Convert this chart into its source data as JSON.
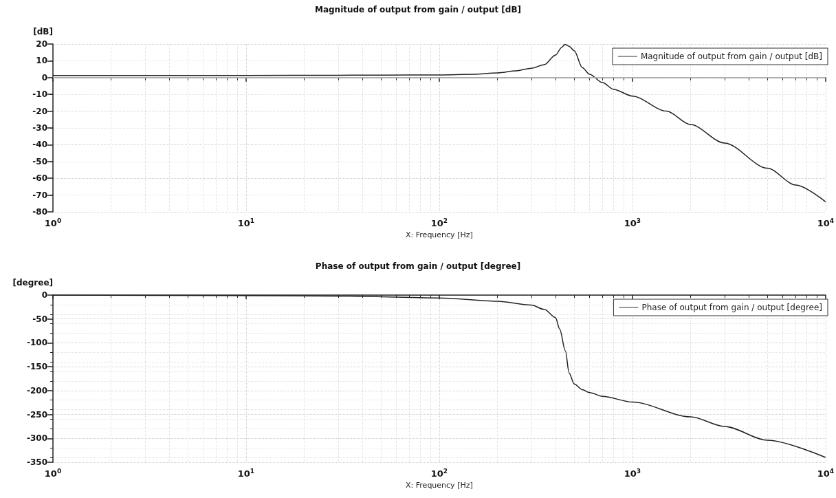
{
  "chart_data": [
    {
      "type": "line",
      "title": "Magnitude of output from gain / output [dB]",
      "xlabel": "X: Frequency [Hz]",
      "ylabel": "[dB]",
      "log": "x",
      "grid": true,
      "legend": "top right",
      "marker": "none",
      "line_style": "solid",
      "xlim": [
        1,
        10000
      ],
      "xticks": [
        {
          "value": 1,
          "label": "10$^{0}$"
        },
        {
          "value": 10,
          "label": "10$^{1}$"
        },
        {
          "value": 100,
          "label": "10$^{2}$"
        },
        {
          "value": 1000,
          "label": "10$^{3}$"
        },
        {
          "value": 10000,
          "label": "10$^{4}$"
        }
      ],
      "ylim": [
        -80,
        20
      ],
      "yticks": [
        -80,
        -70,
        -60,
        -50,
        -40,
        -30,
        -20,
        -10,
        0,
        10,
        20
      ],
      "ref_lines": [
        {
          "axis": "y",
          "value": 0,
          "color": "#cccccc"
        }
      ],
      "series": [
        {
          "name": "Magnitude of output from gain / output [dB]",
          "color": "#222222",
          "x": [
            1,
            10,
            30,
            50,
            100,
            150,
            200,
            250,
            300,
            350,
            400,
            430,
            447,
            470,
            500,
            550,
            600,
            700,
            800,
            1000,
            1500,
            2000,
            3000,
            5000,
            7000,
            10000
          ],
          "values": [
            1.3,
            1.3,
            1.4,
            1.5,
            1.6,
            2,
            2.8,
            4,
            5.6,
            7.7,
            13.4,
            18,
            19.8,
            18.7,
            16,
            6,
            2,
            -3,
            -7,
            -11,
            -20,
            -28,
            -39,
            -54,
            -64,
            -74
          ]
        }
      ]
    },
    {
      "type": "line",
      "title": "Phase of output from gain / output [degree]",
      "xlabel": "X: Frequency [Hz]",
      "ylabel": "[degree]",
      "log": "x",
      "grid": true,
      "legend": "top right",
      "marker": "none",
      "line_style": "solid",
      "xlim": [
        1,
        10000
      ],
      "xticks": [
        {
          "value": 1,
          "label": "10$^{0}$"
        },
        {
          "value": 10,
          "label": "10$^{1}$"
        },
        {
          "value": 100,
          "label": "10$^{2}$"
        },
        {
          "value": 1000,
          "label": "10$^{3}$"
        },
        {
          "value": 10000,
          "label": "10$^{4}$"
        }
      ],
      "ylim": [
        -350,
        0
      ],
      "yticks": [
        -350,
        -300,
        -250,
        -200,
        -150,
        -100,
        -50,
        0
      ],
      "series": [
        {
          "name": "Phase of output from gain / output [degree]",
          "color": "#222222",
          "x": [
            1,
            10,
            30,
            100,
            200,
            300,
            350,
            400,
            420,
            450,
            470,
            500,
            550,
            600,
            700,
            1000,
            2000,
            3000,
            5000,
            10000
          ],
          "values": [
            0,
            -1,
            -2,
            -6,
            -13,
            -21,
            -30,
            -47,
            -71,
            -117,
            -163,
            -186,
            -198,
            -204,
            -212,
            -224,
            -255,
            -275,
            -304,
            -340
          ]
        }
      ]
    }
  ]
}
